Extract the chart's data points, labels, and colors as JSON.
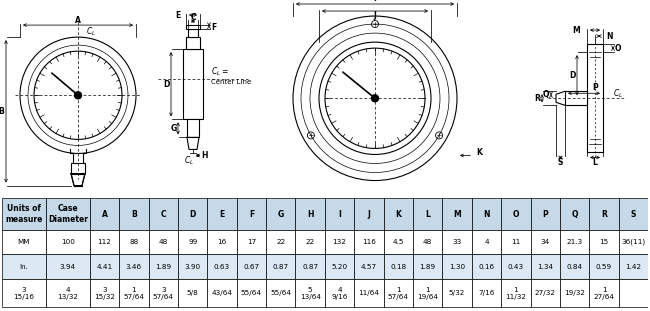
{
  "bg_color": "#ffffff",
  "table": {
    "col_headers": [
      "Units of\nmeasure",
      "Case\nDiameter",
      "A",
      "B",
      "C",
      "D",
      "E",
      "F",
      "G",
      "H",
      "I",
      "J",
      "K",
      "L",
      "M",
      "N",
      "O",
      "P",
      "Q",
      "R",
      "S"
    ],
    "rows": [
      [
        "MM",
        "100",
        "112",
        "88",
        "48",
        "99",
        "16",
        "17",
        "22",
        "22",
        "132",
        "116",
        "4.5",
        "48",
        "33",
        "4",
        "11",
        "34",
        "21.3",
        "15",
        "36(11)"
      ],
      [
        "In.",
        "3.94",
        "4.41",
        "3.46",
        "1.89",
        "3.90",
        "0.63",
        "0.67",
        "0.87",
        "0.87",
        "5.20",
        "4.57",
        "0.18",
        "1.89",
        "1.30",
        "0.16",
        "0.43",
        "1.34",
        "0.84",
        "0.59",
        "1.42"
      ],
      [
        "3\n15/16",
        "4\n13/32",
        "3\n15/32",
        "1\n57/64",
        "3\n57/64",
        "5/8",
        "43/64",
        "55/64",
        "55/64",
        "5\n13/64",
        "4\n9/16",
        "11/64",
        "1\n57/64",
        "1\n19/64",
        "5/32",
        "7/16",
        "1\n11/32",
        "27/32",
        "19/32",
        "1\n27/64",
        ""
      ]
    ],
    "header_bg": "#c5d9e8",
    "alt_bg": "#dce9f5"
  },
  "lw_main": 0.8,
  "lw_dim": 0.55,
  "fs": 5.5
}
